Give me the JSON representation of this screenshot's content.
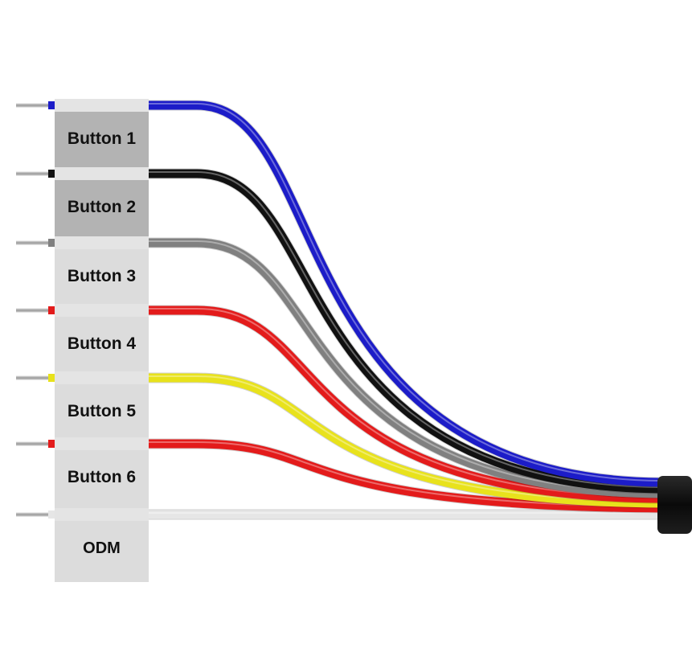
{
  "wires": [
    {
      "label": "Button 1",
      "color": "#1c1cc8",
      "tag_color": "#b3b3b3"
    },
    {
      "label": "Button 2",
      "color": "#111111",
      "tag_color": "#b3b3b3"
    },
    {
      "label": "Button 3",
      "color": "#808080",
      "tag_color": "#dcdcdc"
    },
    {
      "label": "Button 4",
      "color": "#e31b1b",
      "tag_color": "#dcdcdc"
    },
    {
      "label": "Button 5",
      "color": "#e8e21c",
      "tag_color": "#dcdcdc"
    },
    {
      "label": "Button 6",
      "color": "#e31b1b",
      "tag_color": "#dcdcdc"
    },
    {
      "label": "ODM",
      "color": "#e6e6e6",
      "tag_color": "#dcdcdc"
    }
  ],
  "cable_jacket_color": "#111111",
  "pin_color": "#b0b0b0"
}
